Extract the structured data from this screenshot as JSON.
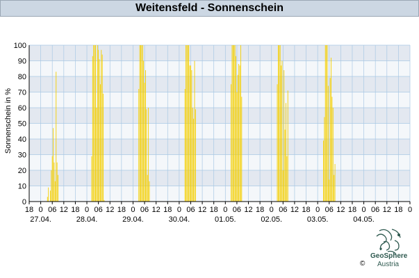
{
  "window": {
    "title": "Weitensfeld - Sonnenschein"
  },
  "footer": {
    "copyright": "©",
    "brand_name": "GeoSphere",
    "brand_sub": "Austria"
  },
  "colors": {
    "bar": "#f5cf00",
    "band_dark": "#e3e8f0",
    "band_light": "#f4f7fa",
    "grid": "#a9c8e4",
    "title_bg": "#ccd7e3"
  },
  "chart_data": {
    "type": "bar",
    "title": "Weitensfeld - Sonnenschein",
    "ylabel": "Sonnenschein in %",
    "xlabel": "",
    "ylim": [
      0,
      100
    ],
    "yticks": [
      0,
      10,
      20,
      30,
      40,
      50,
      60,
      70,
      80,
      90,
      100
    ],
    "grid": true,
    "x_unit": "hours since 27.04. 00:00",
    "xlim": [
      -6,
      192
    ],
    "hour_ticks": [
      {
        "t": -6,
        "label": "18"
      },
      {
        "t": 0,
        "label": "0"
      },
      {
        "t": 6,
        "label": "06"
      },
      {
        "t": 12,
        "label": "12"
      },
      {
        "t": 18,
        "label": "18"
      },
      {
        "t": 24,
        "label": "0"
      },
      {
        "t": 30,
        "label": "06"
      },
      {
        "t": 36,
        "label": "12"
      },
      {
        "t": 42,
        "label": "18"
      },
      {
        "t": 48,
        "label": "0"
      },
      {
        "t": 54,
        "label": "06"
      },
      {
        "t": 60,
        "label": "12"
      },
      {
        "t": 66,
        "label": "18"
      },
      {
        "t": 72,
        "label": "0"
      },
      {
        "t": 78,
        "label": "06"
      },
      {
        "t": 84,
        "label": "12"
      },
      {
        "t": 90,
        "label": "18"
      },
      {
        "t": 96,
        "label": "0"
      },
      {
        "t": 102,
        "label": "06"
      },
      {
        "t": 108,
        "label": "12"
      },
      {
        "t": 114,
        "label": "18"
      },
      {
        "t": 120,
        "label": "0"
      },
      {
        "t": 126,
        "label": "06"
      },
      {
        "t": 132,
        "label": "12"
      },
      {
        "t": 138,
        "label": "18"
      },
      {
        "t": 144,
        "label": "0"
      },
      {
        "t": 150,
        "label": "06"
      },
      {
        "t": 156,
        "label": "12"
      },
      {
        "t": 162,
        "label": "18"
      },
      {
        "t": 168,
        "label": "0"
      },
      {
        "t": 174,
        "label": "06"
      },
      {
        "t": 180,
        "label": "12"
      },
      {
        "t": 186,
        "label": "18"
      },
      {
        "t": 192,
        "label": "0"
      }
    ],
    "date_labels": [
      {
        "t": 0,
        "label": "27.04."
      },
      {
        "t": 24,
        "label": "28.04."
      },
      {
        "t": 48,
        "label": "29.04."
      },
      {
        "t": 72,
        "label": "30.04."
      },
      {
        "t": 96,
        "label": "01.05."
      },
      {
        "t": 120,
        "label": "02.05."
      },
      {
        "t": 144,
        "label": "03.05."
      },
      {
        "t": 168,
        "label": "04.05."
      }
    ],
    "series": [
      {
        "name": "Sonnenschein",
        "points": [
          [
            3.5,
            3
          ],
          [
            4,
            9
          ],
          [
            5,
            7
          ],
          [
            5.5,
            20
          ],
          [
            6,
            29
          ],
          [
            6.5,
            47
          ],
          [
            7,
            25
          ],
          [
            7.5,
            13
          ],
          [
            8,
            83
          ],
          [
            8.5,
            25
          ],
          [
            9,
            17
          ],
          [
            26.5,
            29
          ],
          [
            27,
            93
          ],
          [
            27.5,
            100
          ],
          [
            28,
            100
          ],
          [
            28.5,
            100
          ],
          [
            29,
            60
          ],
          [
            29.5,
            100
          ],
          [
            30,
            97
          ],
          [
            30.5,
            91
          ],
          [
            31,
            75
          ],
          [
            31.5,
            97
          ],
          [
            32,
            94
          ],
          [
            32.5,
            69
          ],
          [
            33,
            1
          ],
          [
            51,
            72
          ],
          [
            51.5,
            100
          ],
          [
            52,
            100
          ],
          [
            52.5,
            100
          ],
          [
            53,
            100
          ],
          [
            53.5,
            90
          ],
          [
            54,
            76
          ],
          [
            54.5,
            84
          ],
          [
            55,
            59
          ],
          [
            55.5,
            17
          ],
          [
            56,
            60
          ],
          [
            56.5,
            13
          ],
          [
            75,
            72
          ],
          [
            75.5,
            100
          ],
          [
            76,
            100
          ],
          [
            76.5,
            100
          ],
          [
            77,
            100
          ],
          [
            77.5,
            87
          ],
          [
            78,
            87
          ],
          [
            78.5,
            84
          ],
          [
            79,
            60
          ],
          [
            79.5,
            53
          ],
          [
            80,
            90
          ],
          [
            80.5,
            59
          ],
          [
            99,
            75
          ],
          [
            99.5,
            100
          ],
          [
            100,
            100
          ],
          [
            100.5,
            100
          ],
          [
            101,
            100
          ],
          [
            101.5,
            93
          ],
          [
            102,
            70
          ],
          [
            102.5,
            81
          ],
          [
            103,
            88
          ],
          [
            103.5,
            87
          ],
          [
            104,
            100
          ],
          [
            104.5,
            67
          ],
          [
            123,
            75
          ],
          [
            123.5,
            100
          ],
          [
            124,
            100
          ],
          [
            124.5,
            100
          ],
          [
            125,
            87
          ],
          [
            125.5,
            90
          ],
          [
            126,
            20
          ],
          [
            126.5,
            84
          ],
          [
            127,
            46
          ],
          [
            127.5,
            63
          ],
          [
            128,
            29
          ],
          [
            128.5,
            71
          ],
          [
            147,
            39
          ],
          [
            147.5,
            54
          ],
          [
            148,
            100
          ],
          [
            148.5,
            100
          ],
          [
            149,
            100
          ],
          [
            149.5,
            74
          ],
          [
            150,
            14
          ],
          [
            150.5,
            79
          ],
          [
            151,
            92
          ],
          [
            151.5,
            67
          ],
          [
            152,
            60
          ],
          [
            152.5,
            17
          ],
          [
            153,
            24
          ]
        ]
      }
    ]
  }
}
